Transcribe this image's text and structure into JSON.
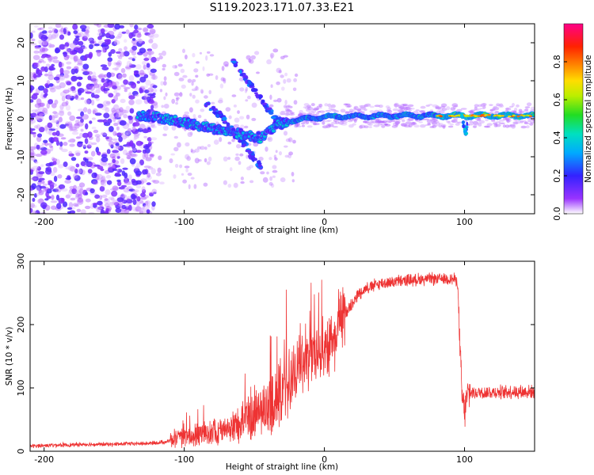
{
  "title": "S119.2023.171.07.33.E21",
  "colors": {
    "snr_line": "#ee3333",
    "axis": "#000000",
    "spectrogram_bg": "#ffffff"
  },
  "chart_data": [
    {
      "type": "heatmap",
      "title": "S119.2023.171.07.33.E21",
      "xlabel": "Height of straight line (km)",
      "ylabel": "Frequency (Hz)",
      "xlim": [
        -210,
        150
      ],
      "ylim": [
        -25,
        25
      ],
      "x_ticks": [
        -200,
        -100,
        0,
        100
      ],
      "y_ticks": [
        -20,
        -10,
        0,
        10,
        20
      ],
      "colorbar": {
        "label": "Normalized spectral amplitude",
        "range": [
          0,
          1
        ],
        "ticks": [
          "0.0",
          "0.2",
          "0.4",
          "0.6",
          "0.8"
        ],
        "tick_values": [
          0.0,
          0.2,
          0.4,
          0.6,
          0.8
        ],
        "colormap": "rainbow (white-violet-blue-cyan-green-yellow-orange-red-magenta)"
      },
      "features": [
        {
          "name": "noise field",
          "x_range": [
            -210,
            -120
          ],
          "y_range": [
            -25,
            25
          ],
          "amplitude": 0.15
        },
        {
          "name": "main trace",
          "points": [
            [
              -133,
              1
            ],
            [
              -120,
              0.5
            ],
            [
              -100,
              -1
            ],
            [
              -80,
              -2.5
            ],
            [
              -60,
              -4
            ],
            [
              -45,
              -5
            ],
            [
              -35,
              -2
            ],
            [
              -25,
              -0.5
            ],
            [
              0,
              0.5
            ],
            [
              50,
              0.8
            ],
            [
              100,
              0.8
            ],
            [
              150,
              0.8
            ]
          ]
        },
        {
          "name": "upper descending arc",
          "points": [
            [
              -65,
              15
            ],
            [
              -55,
              10
            ],
            [
              -45,
              5
            ],
            [
              -35,
              0
            ],
            [
              -28,
              -1
            ]
          ]
        },
        {
          "name": "lower descending arc",
          "points": [
            [
              -85,
              4
            ],
            [
              -75,
              1
            ],
            [
              -65,
              -3
            ],
            [
              -55,
              -8
            ],
            [
              -45,
              -13
            ]
          ]
        },
        {
          "name": "intense core",
          "x_range": [
            80,
            150
          ],
          "y_value": 0.8,
          "amplitude": 0.85
        },
        {
          "name": "notch near 100 km",
          "points": [
            [
              98,
              1
            ],
            [
              99,
              -1
            ],
            [
              100,
              -3
            ],
            [
              101,
              -4
            ],
            [
              102,
              -1
            ]
          ]
        }
      ]
    },
    {
      "type": "line",
      "xlabel": "Height of straight line (km)",
      "ylabel": "SNR (10 * v/v)",
      "xlim": [
        -210,
        150
      ],
      "ylim": [
        0,
        300
      ],
      "x_ticks": [
        -200,
        -100,
        0,
        100
      ],
      "y_ticks": [
        0,
        100,
        200,
        300
      ],
      "series": [
        {
          "x": [
            -210,
            -200,
            -190,
            -180,
            -170,
            -160,
            -150,
            -140,
            -130,
            -120,
            -110,
            -100,
            -90,
            -80,
            -70,
            -60,
            -50,
            -40,
            -30,
            -25,
            -20,
            -15,
            -10,
            -5,
            0,
            5,
            10,
            15,
            20,
            25,
            30,
            40,
            50,
            60,
            70,
            80,
            90,
            95,
            98,
            100,
            102,
            105,
            110,
            120,
            130,
            140,
            150
          ],
          "values": [
            8,
            9,
            10,
            10,
            11,
            11,
            11,
            12,
            12,
            13,
            16,
            22,
            25,
            30,
            35,
            45,
            55,
            70,
            85,
            110,
            130,
            145,
            150,
            160,
            165,
            175,
            195,
            220,
            235,
            250,
            258,
            265,
            268,
            270,
            272,
            272,
            273,
            270,
            90,
            60,
            90,
            92,
            93,
            93,
            94,
            94,
            94
          ]
        }
      ]
    }
  ]
}
